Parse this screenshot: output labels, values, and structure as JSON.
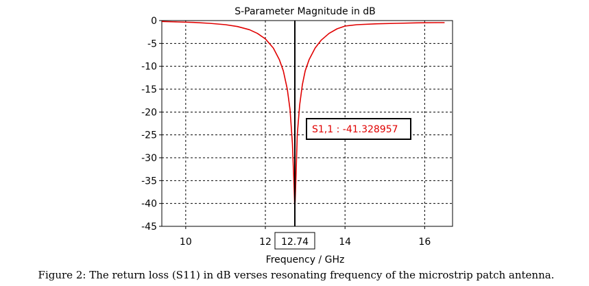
{
  "chart_data": {
    "type": "line",
    "title": "S-Parameter Magnitude in dB",
    "xlabel": "Frequency / GHz",
    "ylabel": "",
    "xlim": [
      9.4,
      16.7
    ],
    "ylim": [
      -45,
      0
    ],
    "x_ticks": [
      10,
      12,
      14,
      16
    ],
    "y_ticks": [
      0,
      -5,
      -10,
      -15,
      -20,
      -25,
      -30,
      -35,
      -40,
      -45
    ],
    "grid": true,
    "series": [
      {
        "name": "",
        "color": "#e00000",
        "x": [
          9.4,
          9.8,
          10.2,
          10.6,
          11.0,
          11.3,
          11.6,
          11.8,
          12.0,
          12.2,
          12.35,
          12.45,
          12.55,
          12.62,
          12.68,
          12.71,
          12.74,
          12.77,
          12.8,
          12.86,
          12.93,
          13.0,
          13.1,
          13.25,
          13.4,
          13.6,
          13.8,
          14.0,
          14.3,
          14.8,
          15.3,
          15.8,
          16.3,
          16.5
        ],
        "y": [
          -0.2,
          -0.3,
          -0.4,
          -0.6,
          -0.9,
          -1.3,
          -2.0,
          -2.8,
          -4.0,
          -6.0,
          -8.5,
          -11.0,
          -15.0,
          -19.5,
          -27.0,
          -34.0,
          -41.328957,
          -34.0,
          -25.0,
          -18.5,
          -14.0,
          -11.0,
          -8.5,
          -6.0,
          -4.3,
          -2.8,
          -1.8,
          -1.2,
          -0.9,
          -0.7,
          -0.6,
          -0.5,
          -0.45,
          -0.45
        ]
      }
    ],
    "marker": {
      "x": 12.74,
      "x_label": "12.74",
      "readout": "S1,1 : -41.328957",
      "line_color": "#000000"
    }
  },
  "caption": "Figure 2: The return loss (S11) in dB verses resonating frequency of the microstrip patch antenna."
}
